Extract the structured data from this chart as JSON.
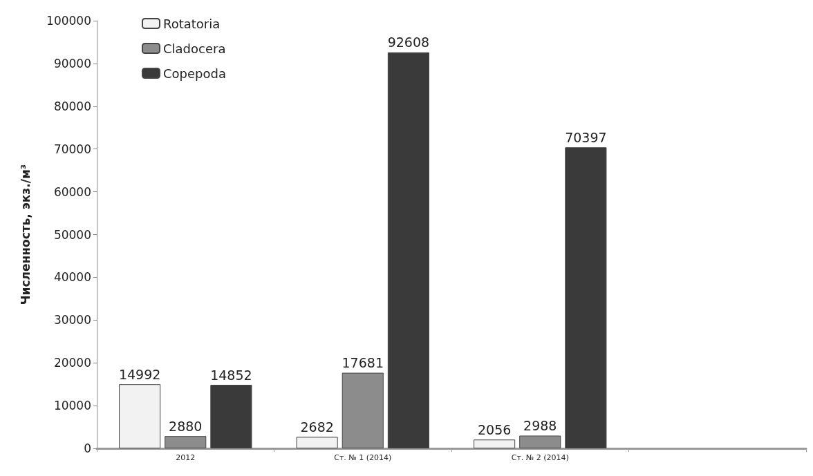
{
  "chart_data": {
    "type": "bar",
    "ylabel": "Численность, экз./м³",
    "categories": [
      "2012",
      "Ст. № 1 (2014)",
      "Ст. № 2 (2014)",
      null
    ],
    "series": [
      {
        "name": "Rotatoria",
        "color": "#f2f2f2",
        "values": [
          14992,
          2682,
          2056,
          null
        ]
      },
      {
        "name": "Cladocera",
        "color": "#8c8c8c",
        "values": [
          2880,
          17681,
          2988,
          null
        ]
      },
      {
        "name": "Copepoda",
        "color": "#3a3a3a",
        "values": [
          14852,
          92608,
          70397,
          null
        ]
      }
    ],
    "ylim": [
      0,
      100000
    ],
    "yticks": [
      0,
      10000,
      20000,
      30000,
      40000,
      50000,
      60000,
      70000,
      80000,
      90000,
      100000
    ],
    "data_labels": true,
    "grid": false,
    "legend": "top left"
  }
}
